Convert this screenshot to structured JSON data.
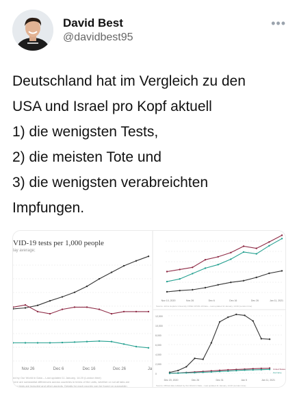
{
  "user": {
    "name": "David Best",
    "handle": "@davidbest95",
    "avatar_icon": "avatar-photo",
    "more_icon": "more-dots-icon",
    "more_glyph": "•••"
  },
  "tweet": {
    "lines": [
      "Deutschland hat im Vergleich zu den",
      "USA und Israel pro Kopf aktuell",
      "1) die wenigsten Tests,",
      "2) die meisten Tote und",
      "3) die wenigsten verabreichten",
      "Impfungen."
    ]
  },
  "media": {
    "left_chart": {
      "title": "VID-19 tests per 1,000 people",
      "subtitle": "lay average;",
      "xticks": [
        "Nov 26",
        "Dec 6",
        "Dec 16",
        "Dec 26",
        "Ja"
      ],
      "note_lines": [
        "ed by Our World in Data – Last updated 11 January, 14:20 (London time)",
        "here are substantial differences across countries in terms of the units, whether or not all labs are",
        "hing tests are included and other aspects. Details for each country can be found on ourworldin"
      ],
      "chart_data": {
        "type": "line",
        "series": [
          {
            "color": "#333333",
            "values": [
              22,
              24,
              29,
              38,
              46,
              55,
              67,
              82,
              95,
              108,
              118,
              127
            ]
          },
          {
            "color": "#8e2a45",
            "values": [
              12,
              13,
              10,
              9,
              11,
              12,
              12,
              11,
              9,
              10,
              10,
              10
            ]
          },
          {
            "color": "#24a090",
            "values": [
              4.5,
              4.5,
              4.5,
              4.5,
              4.6,
              4.8,
              5,
              5.2,
              5,
              4,
              3,
              2.5
            ]
          }
        ]
      }
    },
    "right_top_chart": {
      "xticks": [
        "Nov 10, 2020",
        "Nov 26",
        "Dec 6",
        "Dec 16",
        "Dec 26",
        "Jan 11, 2021"
      ],
      "note": "Source: Johns Hopkins University CSSE COVID-19 Data – Last updated 11 January, 14:20 (London time)",
      "chart_data": {
        "type": "line",
        "series": [
          {
            "color": "#8e2a45",
            "values": [
              3,
              3.5,
              4,
              5.8,
              6.5,
              7.5,
              9,
              8.5,
              10,
              11.6
            ]
          },
          {
            "color": "#24a090",
            "values": [
              1.2,
              1.8,
              3,
              4.2,
              5,
              6.2,
              7.8,
              7.4,
              9.2,
              10.8
            ]
          },
          {
            "color": "#333333",
            "values": [
              0.5,
              0.8,
              1,
              1.5,
              2.2,
              2.8,
              3.2,
              4,
              5,
              5.6
            ]
          }
        ]
      }
    },
    "right_bottom_chart": {
      "yticks": [
        "12,000",
        "10,000",
        "8,000",
        "6,000",
        "4,000",
        "2,000",
        "0"
      ],
      "xticks": [
        "Dec 20, 2020",
        "Dec 26",
        "Dec 31",
        "Jan 5",
        "Jan 11, 2021"
      ],
      "legend": [
        "United States",
        "Germany"
      ],
      "note": "Source: Official data collated by Our World in Data – Last updated 11 January, 14:20 (London time)",
      "chart_data": {
        "type": "line",
        "series": [
          {
            "color": "#333333",
            "values": [
              200,
              600,
              1400,
              3200,
              3000,
              6500,
              11000,
              12000,
              12600,
              12400,
              11200,
              7400,
              7300
            ]
          },
          {
            "color": "#8e2a45",
            "values": [
              0,
              40,
              90,
              140,
              200,
              260,
              320,
              380,
              420,
              460,
              500,
              540,
              560
            ]
          },
          {
            "color": "#24a090",
            "values": [
              0,
              20,
              40,
              60,
              90,
              120,
              160,
              200,
              240,
              280,
              300,
              320,
              340
            ]
          }
        ]
      }
    }
  }
}
